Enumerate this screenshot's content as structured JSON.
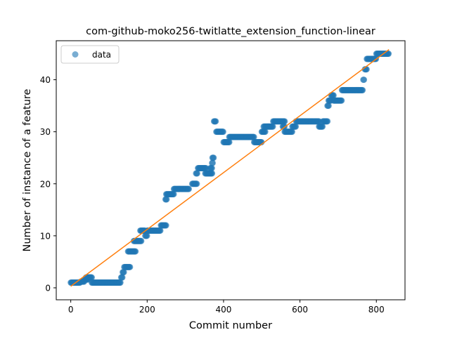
{
  "chart_data": {
    "type": "scatter",
    "title": "com-github-moko256-twitlatte_extension_function-linear",
    "xlabel": "Commit number",
    "ylabel": "Number of instance of a feature",
    "xlim": [
      -38,
      875
    ],
    "ylim": [
      -2.3,
      47.5
    ],
    "xticks": [
      0,
      200,
      400,
      600,
      800
    ],
    "yticks": [
      0,
      10,
      20,
      30,
      40
    ],
    "grid": false,
    "legend": {
      "placement": "upper-left",
      "entries": [
        "data"
      ]
    },
    "colors": {
      "data": "#1f77b4",
      "fit": "#ff7f0e"
    },
    "series": [
      {
        "name": "data",
        "kind": "scatter",
        "segments": [
          [
            0,
            25,
            1
          ],
          [
            26,
            35,
            1.2
          ],
          [
            36,
            45,
            1.6
          ],
          [
            40,
            55,
            2
          ],
          [
            55,
            130,
            1
          ],
          [
            132,
            135,
            2
          ],
          [
            136,
            139,
            3
          ],
          [
            140,
            155,
            4
          ],
          [
            150,
            170,
            7
          ],
          [
            165,
            185,
            9
          ],
          [
            182,
            195,
            11
          ],
          [
            195,
            200,
            10
          ],
          [
            200,
            235,
            11
          ],
          [
            236,
            250,
            12
          ],
          [
            248,
            252,
            17
          ],
          [
            250,
            270,
            18
          ],
          [
            270,
            310,
            19
          ],
          [
            318,
            330,
            20
          ],
          [
            328,
            332,
            22
          ],
          [
            333,
            355,
            23
          ],
          [
            352,
            370,
            22
          ],
          [
            365,
            370,
            23
          ],
          [
            370,
            372,
            24
          ],
          [
            371,
            375,
            25
          ],
          [
            375,
            380,
            32
          ],
          [
            381,
            400,
            30
          ],
          [
            400,
            415,
            28
          ],
          [
            415,
            480,
            29
          ],
          [
            480,
            500,
            28
          ],
          [
            500,
            510,
            30
          ],
          [
            505,
            530,
            31
          ],
          [
            530,
            560,
            32
          ],
          [
            555,
            560,
            31
          ],
          [
            560,
            580,
            30
          ],
          [
            580,
            590,
            31
          ],
          [
            590,
            650,
            32
          ],
          [
            650,
            660,
            31
          ],
          [
            660,
            672,
            32
          ],
          [
            672,
            675,
            35
          ],
          [
            675,
            682,
            36
          ],
          [
            682,
            688,
            37
          ],
          [
            688,
            710,
            36
          ],
          [
            710,
            765,
            38
          ],
          [
            766,
            768,
            40
          ],
          [
            770,
            775,
            42
          ],
          [
            775,
            800,
            44
          ],
          [
            800,
            820,
            45
          ],
          [
            820,
            833,
            45
          ]
        ]
      },
      {
        "name": "fit",
        "kind": "line",
        "x": [
          0,
          833
        ],
        "y": [
          0.3,
          45.8
        ]
      }
    ]
  }
}
